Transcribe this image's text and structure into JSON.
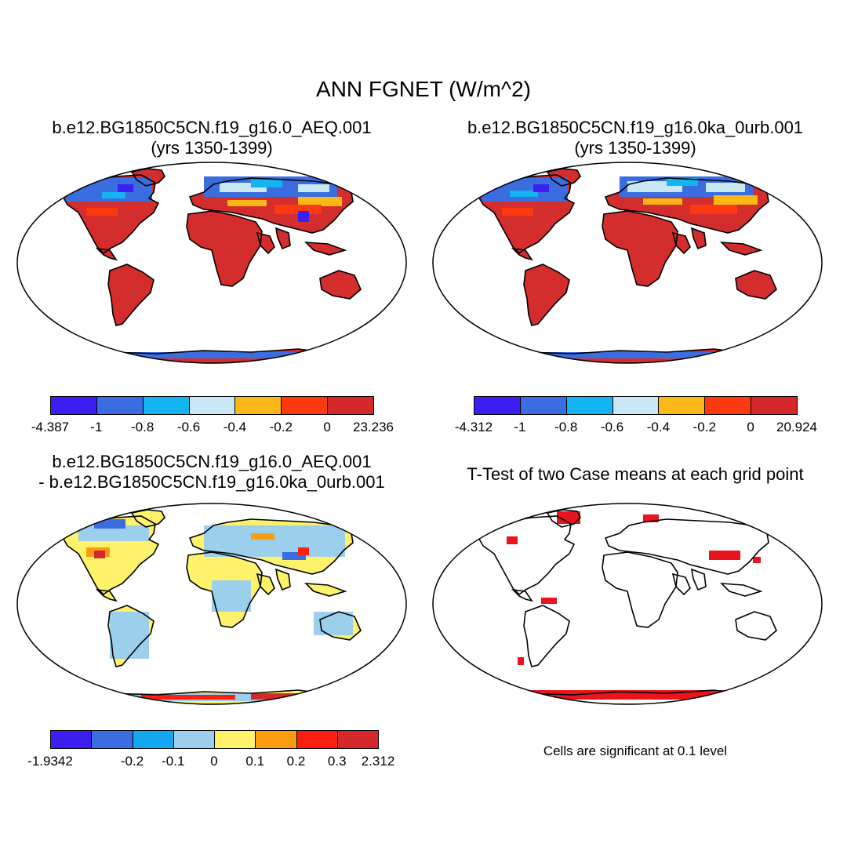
{
  "title": "ANN FGNET (W/m^2)",
  "panels": [
    {
      "line1": "b.e12.BG1850C5CN.f19_g16.0_AEQ.001",
      "line2": "(yrs 1350-1399)"
    },
    {
      "line1": "b.e12.BG1850C5CN.f19_g16.0ka_0urb.001",
      "line2": "(yrs 1350-1399)"
    },
    {
      "line1": "b.e12.BG1850C5CN.f19_g16.0_AEQ.001",
      "line2": "- b.e12.BG1850C5CN.f19_g16.0ka_0urb.001"
    },
    {
      "line1": "T-Test of two Case means at each grid point",
      "line2": ""
    }
  ],
  "colorbars": [
    {
      "colors": [
        "#3b1ef0",
        "#3a6ee0",
        "#14b4f0",
        "#c8e8f6",
        "#fbb818",
        "#fb3a10",
        "#d4282a"
      ],
      "labels": [
        "-4.387",
        "-1",
        "-0.8",
        "-0.6",
        "-0.4",
        "-0.2",
        "0",
        "23.236"
      ]
    },
    {
      "colors": [
        "#3b1ef0",
        "#3a6ee0",
        "#14b4f0",
        "#c8e8f6",
        "#fbb818",
        "#fb3a10",
        "#d4282a"
      ],
      "labels": [
        "-4.312",
        "-1",
        "-0.8",
        "-0.6",
        "-0.4",
        "-0.2",
        "0",
        "20.924"
      ]
    },
    {
      "colors": [
        "#3b1ef0",
        "#3a6ee0",
        "#14a8f0",
        "#9ccfec",
        "#fdf26a",
        "#fb9c10",
        "#fb1f10",
        "#d4282a"
      ],
      "labels": [
        "-1.9342",
        "",
        "-0.2",
        "-0.1",
        "0",
        "0.1",
        "0.2",
        "0.3",
        "2.312"
      ]
    }
  ],
  "significance_note": "Cells are significant at 0.1 level",
  "palette": {
    "land": "#d32d2d",
    "cold": "#3a6ee0",
    "ice_blue": "#c8e8f6",
    "anomaly_yellow": "#fdf26a",
    "anomaly_blue": "#9ccfec",
    "sig_red": "#e8141e"
  }
}
